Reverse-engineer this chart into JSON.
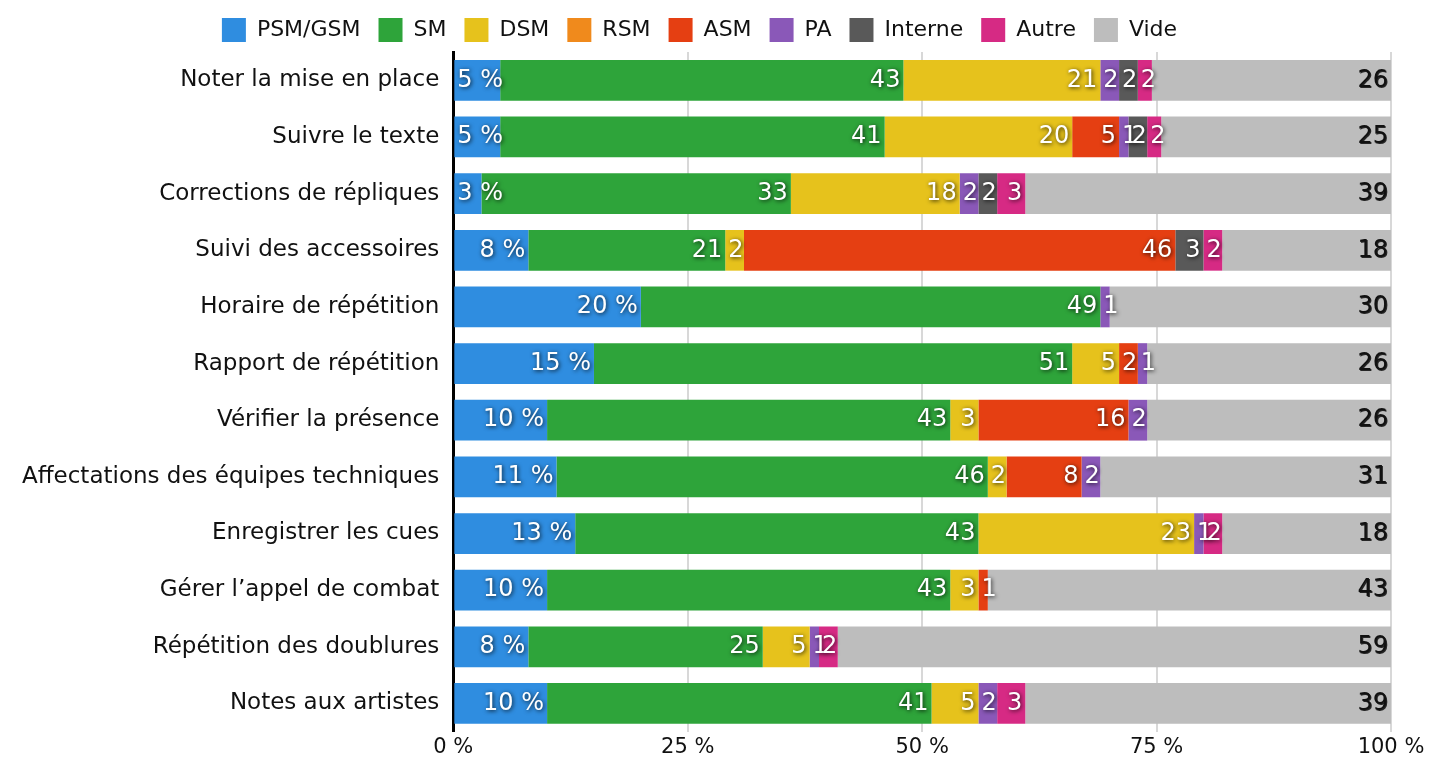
{
  "chart_data": {
    "type": "bar",
    "orientation": "horizontal",
    "stacked": true,
    "legend": "top",
    "grid": "x",
    "categories": [
      "Noter la mise en place",
      "Suivre le texte",
      "Corrections de répliques",
      "Suivi des accessoires",
      "Horaire de répétition",
      "Rapport de répétition",
      "Vérifier la présence",
      "Affectations des équipes techniques",
      "Enregistrer les cues",
      "Gérer l’appel de combat",
      "Répétition des doublures",
      "Notes aux artistes"
    ],
    "xlim": [
      0,
      100
    ],
    "xticks": [
      {
        "value": 0,
        "label": "0 %"
      },
      {
        "value": 25,
        "label": "25 %"
      },
      {
        "value": 50,
        "label": "50 %"
      },
      {
        "value": 75,
        "label": "75 %"
      },
      {
        "value": 100,
        "label": "100 %"
      }
    ],
    "series": [
      {
        "name": "PSM/GSM",
        "color": "#2f8de0",
        "values": [
          5,
          5,
          3,
          8,
          20,
          15,
          10,
          11,
          13,
          10,
          8,
          10
        ],
        "value_labels": [
          "5 %",
          "5 %",
          "3 %",
          "8 %",
          "20 %",
          "15 %",
          "10 %",
          "11 %",
          "13 %",
          "10 %",
          "8 %",
          "10 %"
        ]
      },
      {
        "name": "SM",
        "color": "#2ea43a",
        "values": [
          43,
          41,
          33,
          21,
          49,
          51,
          43,
          46,
          43,
          43,
          25,
          41
        ],
        "value_labels": [
          "43",
          "41",
          "33",
          "21",
          "49",
          "51",
          "43",
          "46",
          "43",
          "43",
          "25",
          "41"
        ]
      },
      {
        "name": "DSM",
        "color": "#e6c21c",
        "values": [
          21,
          20,
          18,
          2,
          null,
          5,
          3,
          2,
          23,
          3,
          5,
          5
        ],
        "value_labels": [
          "21",
          "20",
          "18",
          "2",
          null,
          "5",
          "3",
          "2",
          "23",
          "3",
          "5",
          "5"
        ]
      },
      {
        "name": "RSM",
        "color": "#f08a1c",
        "values": [
          null,
          null,
          null,
          null,
          null,
          null,
          null,
          null,
          null,
          null,
          null,
          null
        ],
        "value_labels": [
          null,
          null,
          null,
          null,
          null,
          null,
          null,
          null,
          null,
          null,
          null,
          null
        ]
      },
      {
        "name": "ASM",
        "color": "#e53f12",
        "values": [
          null,
          5,
          null,
          46,
          null,
          2,
          16,
          8,
          null,
          1,
          null,
          null
        ],
        "value_labels": [
          null,
          "5",
          null,
          "46",
          null,
          "2",
          "16",
          "8",
          null,
          "1",
          null,
          null
        ]
      },
      {
        "name": "PA",
        "color": "#8a58b8",
        "values": [
          2,
          1,
          2,
          null,
          1,
          1,
          2,
          2,
          1,
          null,
          1,
          2
        ],
        "value_labels": [
          "2",
          "1",
          "2",
          null,
          "1",
          "1",
          "2",
          "2",
          "1",
          null,
          "1",
          "2"
        ]
      },
      {
        "name": "Interne",
        "color": "#595959",
        "values": [
          2,
          2,
          2,
          3,
          null,
          null,
          null,
          null,
          null,
          null,
          null,
          null
        ],
        "value_labels": [
          "2",
          "2",
          "2",
          "3",
          null,
          null,
          null,
          null,
          null,
          null,
          null,
          null
        ]
      },
      {
        "name": "Autre",
        "color": "#d62a84",
        "values": [
          1.5,
          1.5,
          3,
          2,
          null,
          null,
          null,
          null,
          2,
          null,
          2,
          3
        ],
        "value_labels": [
          "2",
          "2",
          "3",
          "2",
          null,
          null,
          null,
          null,
          "2",
          null,
          "2",
          "3"
        ]
      },
      {
        "name": "Vide",
        "color": "#bdbdbd",
        "values": [
          25.5,
          24.5,
          39,
          18,
          30,
          26,
          26,
          31,
          18,
          43,
          59,
          39
        ],
        "value_labels": [
          "26",
          "25",
          "39",
          "18",
          "30",
          "26",
          "26",
          "31",
          "18",
          "43",
          "59",
          "39"
        ]
      }
    ]
  }
}
